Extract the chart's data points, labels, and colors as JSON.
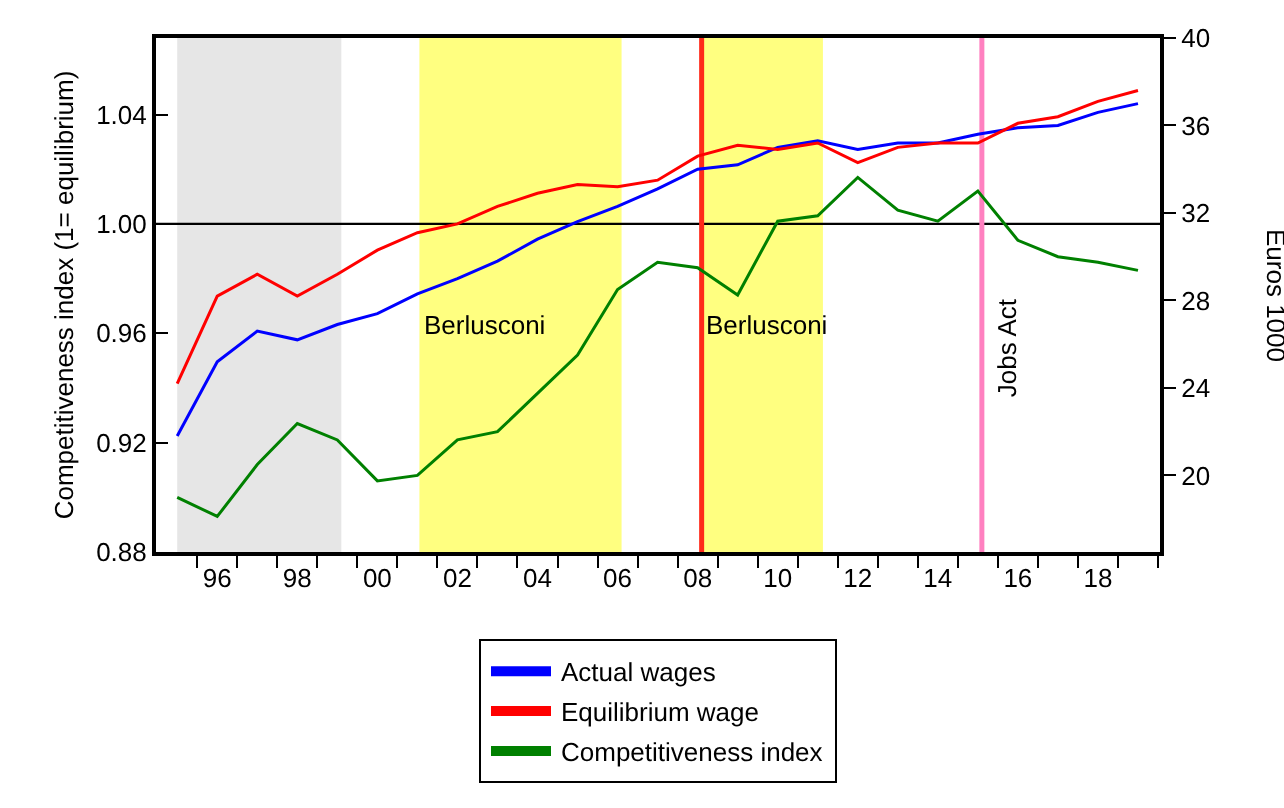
{
  "chart_data": {
    "type": "line",
    "ylabel": "Competitiveness index (1= equilibrium)",
    "y2label": "Euros 1000",
    "x": [
      1995,
      1996,
      1997,
      1998,
      1999,
      2000,
      2001,
      2002,
      2003,
      2004,
      2005,
      2006,
      2007,
      2008,
      2009,
      2010,
      2011,
      2012,
      2013,
      2014,
      2015,
      2016,
      2017,
      2018,
      2019
    ],
    "series": [
      {
        "name": "Actual wages",
        "color": "#0000ff",
        "axis": "y2",
        "values": [
          21.8,
          25.2,
          26.6,
          26.2,
          26.9,
          27.4,
          28.3,
          29.0,
          29.8,
          30.8,
          31.6,
          32.3,
          33.1,
          34.0,
          34.2,
          35.0,
          35.3,
          34.9,
          35.2,
          35.2,
          35.6,
          35.9,
          36.0,
          36.6,
          37.0
        ]
      },
      {
        "name": "Equilibrium wage",
        "color": "#ff0000",
        "axis": "y2",
        "values": [
          24.2,
          28.2,
          29.2,
          28.2,
          29.2,
          30.3,
          31.1,
          31.5,
          32.3,
          32.9,
          33.3,
          33.2,
          33.5,
          34.6,
          35.1,
          34.9,
          35.2,
          34.3,
          35.0,
          35.2,
          35.2,
          36.1,
          36.4,
          37.1,
          37.6
        ]
      },
      {
        "name": "Competitiveness index",
        "color": "#008000",
        "values": [
          0.9,
          0.893,
          0.912,
          0.927,
          0.921,
          0.906,
          0.908,
          0.921,
          0.924,
          0.938,
          0.952,
          0.976,
          0.986,
          0.984,
          0.974,
          1.001,
          1.003,
          1.017,
          1.005,
          1.001,
          1.012,
          0.994,
          0.988,
          0.986,
          0.983
        ]
      }
    ],
    "xlim": [
      1994.47,
      2019.55
    ],
    "xticks": [
      {
        "value": 1996,
        "label": "96"
      },
      {
        "value": 1998,
        "label": "98"
      },
      {
        "value": 2000,
        "label": "00"
      },
      {
        "value": 2002,
        "label": "02"
      },
      {
        "value": 2004,
        "label": "04"
      },
      {
        "value": 2006,
        "label": "06"
      },
      {
        "value": 2008,
        "label": "08"
      },
      {
        "value": 2010,
        "label": "10"
      },
      {
        "value": 2012,
        "label": "12"
      },
      {
        "value": 2014,
        "label": "14"
      },
      {
        "value": 2016,
        "label": "16"
      },
      {
        "value": 2018,
        "label": "18"
      },
      {
        "value": 1995.5,
        "label": null
      },
      {
        "value": 1996.5,
        "label": null
      },
      {
        "value": 1997.5,
        "label": null
      },
      {
        "value": 1998.5,
        "label": null
      },
      {
        "value": 1999.5,
        "label": null
      },
      {
        "value": 2000.5,
        "label": null
      },
      {
        "value": 2001.5,
        "label": null
      },
      {
        "value": 2002.5,
        "label": null
      },
      {
        "value": 2003.5,
        "label": null
      },
      {
        "value": 2004.5,
        "label": null
      },
      {
        "value": 2005.5,
        "label": null
      },
      {
        "value": 2006.5,
        "label": null
      },
      {
        "value": 2007.5,
        "label": null
      },
      {
        "value": 2008.5,
        "label": null
      },
      {
        "value": 2009.5,
        "label": null
      },
      {
        "value": 2010.5,
        "label": null
      },
      {
        "value": 2011.5,
        "label": null
      },
      {
        "value": 2012.5,
        "label": null
      },
      {
        "value": 2013.5,
        "label": null
      },
      {
        "value": 2014.5,
        "label": null
      },
      {
        "value": 2015.5,
        "label": null
      },
      {
        "value": 2016.5,
        "label": null
      },
      {
        "value": 2017.5,
        "label": null
      },
      {
        "value": 2018.5,
        "label": null
      },
      {
        "value": 2019.5,
        "label": null
      }
    ],
    "ylim": [
      0.88,
      1.068
    ],
    "yticks": [
      {
        "value": 0.88,
        "label": "0.88"
      },
      {
        "value": 0.92,
        "label": "0.92"
      },
      {
        "value": 0.96,
        "label": "0.96"
      },
      {
        "value": 1.0,
        "label": "1.00"
      },
      {
        "value": 1.04,
        "label": "1.04"
      }
    ],
    "y2lim": [
      16.5,
      40
    ],
    "y2ticks": [
      20,
      24,
      28,
      32,
      36,
      40
    ],
    "bands": [
      {
        "axis": "x",
        "from": 1995,
        "to": 1999.1,
        "label": null,
        "color": "#e6e6e6"
      },
      {
        "axis": "x",
        "from": 2001.05,
        "to": 2006.1,
        "label": "Berlusconi",
        "color": "#ffff80"
      },
      {
        "axis": "x",
        "from": 2008.1,
        "to": 2011.13,
        "label": "Berlusconi",
        "color": "#ffff80"
      }
    ],
    "ref_lines": [
      {
        "axis": "y",
        "value": 1.0,
        "label": null,
        "color": "#000000"
      },
      {
        "axis": "x",
        "value": 2008.1,
        "label": null,
        "color": "#ff2a1a"
      },
      {
        "axis": "x",
        "value": 2015.1,
        "label": "Jobs Act",
        "color": "#ff80c0"
      }
    ],
    "legend": "bottom",
    "grid": false,
    "marker": "none",
    "line_style": "solid"
  }
}
